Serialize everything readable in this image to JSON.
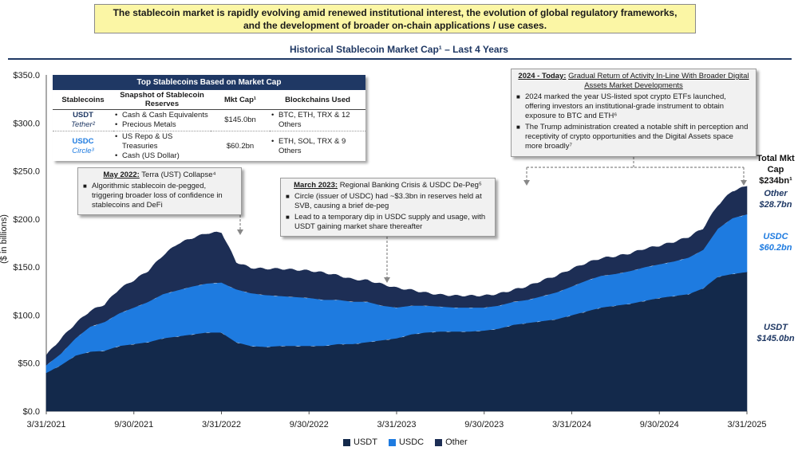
{
  "banner": {
    "line1": "The stablecoin market is rapidly evolving amid renewed institutional interest, the evolution of global regulatory frameworks,",
    "line2": "and the development of broader on-chain applications / use cases."
  },
  "colors": {
    "usdt": "#13294b",
    "usdc": "#1e7be0",
    "other": "#1d2e55",
    "title": "#1f3864"
  },
  "table": {
    "title": "Top Stablecoins Based on Market Cap",
    "headers": [
      "Stablecoins",
      "Snapshot of Stablecoin Reserves",
      "Mkt Cap¹",
      "Blockchains Used"
    ],
    "rows": [
      {
        "coin": "USDT",
        "issuer": "Tether²",
        "reserves": [
          "Cash & Cash Equivalents",
          "Precious Metals"
        ],
        "mcap": "$145.0bn",
        "chains": [
          "BTC, ETH, TRX & 12 Others"
        ]
      },
      {
        "coin": "USDC",
        "issuer": "Circle³",
        "reserves": [
          "US Repo & US Treasuries",
          "Cash (US Dollar)"
        ],
        "mcap": "$60.2bn",
        "chains": [
          "ETH, SOL, TRX & 9 Others"
        ]
      }
    ]
  },
  "annotations": {
    "terra": {
      "date": "May 2022:",
      "title": "Terra (UST) Collapse⁴",
      "bullets": [
        "Algorithmic stablecoin de-pegged, triggering broader loss of confidence in stablecoins and DeFi"
      ]
    },
    "svb": {
      "date": "March 2023:",
      "title": "Regional Banking Crisis & USDC De-Peg⁵",
      "bullets": [
        "Circle (issuer of USDC) had ~$3.3bn in reserves held at SVB, causing a brief de-peg",
        "Lead to a temporary dip in USDC supply and usage, with USDT gaining market share thereafter"
      ]
    },
    "today": {
      "date": "2024 - Today:",
      "title": "Gradual Return of Activity In-Line With Broader Digital Assets Market Developments",
      "bullets": [
        "2024 marked the year US-listed spot crypto ETFs launched, offering investors an institutional-grade instrument to obtain exposure to BTC and ETH⁶",
        "The Trump administration created a notable shift in perception and receptivity of crypto opportunities and the Digital Assets space more broadly⁷"
      ]
    }
  },
  "right_labels": {
    "total_label": "Total Mkt Cap",
    "total_value": "$234bn¹",
    "other_name": "Other",
    "other_value": "$28.7bn",
    "usdc_name": "USDC",
    "usdc_value": "$60.2bn",
    "usdt_name": "USDT",
    "usdt_value": "$145.0bn"
  },
  "chart_data": {
    "type": "area",
    "stacked": true,
    "title": "Historical Stablecoin Market Cap¹ – Last 4 Years",
    "ylabel": "($ in billions)",
    "xlabel": "",
    "ylim": [
      0,
      350
    ],
    "yticks": [
      0,
      50,
      100,
      150,
      200,
      250,
      300,
      350
    ],
    "ytick_labels": [
      "$0.0",
      "$50.0",
      "$100.0",
      "$150.0",
      "$200.0",
      "$250.0",
      "$300.0",
      "$350.0"
    ],
    "xtick_labels": [
      "3/31/2021",
      "9/30/2021",
      "3/31/2022",
      "9/30/2022",
      "3/31/2023",
      "9/30/2023",
      "3/31/2024",
      "9/30/2024",
      "3/31/2025"
    ],
    "x_months_from_start": [
      0,
      1,
      2,
      3,
      4,
      5,
      6,
      7,
      8,
      9,
      10,
      11,
      12,
      13,
      14,
      15,
      16,
      17,
      18,
      19,
      20,
      21,
      22,
      23,
      24,
      25,
      26,
      27,
      28,
      29,
      30,
      31,
      32,
      33,
      34,
      35,
      36,
      37,
      38,
      39,
      40,
      41,
      42,
      43,
      44,
      45,
      46,
      47,
      48
    ],
    "series": [
      {
        "name": "USDT",
        "values": [
          40,
          48,
          58,
          62,
          63,
          68,
          70,
          72,
          76,
          78,
          80,
          82,
          82,
          72,
          68,
          67,
          68,
          68,
          68,
          68,
          70,
          70,
          72,
          74,
          76,
          80,
          82,
          83,
          83,
          83,
          84,
          86,
          90,
          92,
          94,
          96,
          100,
          104,
          108,
          110,
          112,
          115,
          118,
          120,
          122,
          128,
          140,
          143,
          145
        ]
      },
      {
        "name": "USDC",
        "values": [
          8,
          12,
          18,
          26,
          30,
          34,
          38,
          42,
          46,
          48,
          50,
          51,
          52,
          55,
          55,
          54,
          52,
          51,
          50,
          48,
          46,
          44,
          42,
          36,
          32,
          30,
          28,
          26,
          25,
          25,
          24,
          24,
          24,
          24,
          26,
          28,
          30,
          32,
          33,
          33,
          34,
          35,
          35,
          36,
          38,
          40,
          50,
          58,
          60
        ]
      },
      {
        "name": "Other",
        "values": [
          10,
          15,
          15,
          16,
          18,
          25,
          28,
          32,
          40,
          48,
          50,
          52,
          52,
          28,
          26,
          27,
          28,
          28,
          28,
          28,
          25,
          23,
          22,
          22,
          20,
          16,
          13,
          12,
          12,
          12,
          12,
          12,
          12,
          14,
          16,
          17,
          18,
          18,
          18,
          18,
          18,
          19,
          19,
          20,
          21,
          22,
          24,
          28,
          29
        ]
      }
    ],
    "legend": [
      "USDT",
      "USDC",
      "Other"
    ],
    "legend_position": "bottom"
  }
}
